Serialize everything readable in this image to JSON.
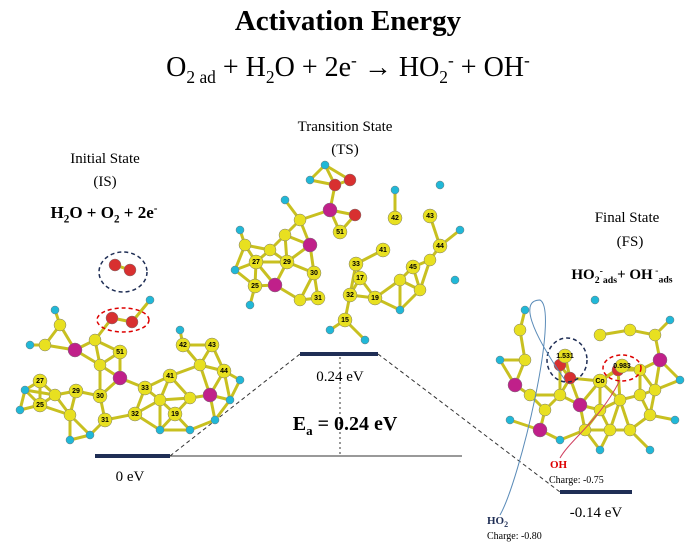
{
  "header": {
    "title": "Activation Energy",
    "equation": [
      {
        "text": "O",
        "style": "normal"
      },
      {
        "text": "2 ad",
        "style": "sub"
      },
      {
        "text": " + H",
        "style": "normal"
      },
      {
        "text": "2",
        "style": "sub"
      },
      {
        "text": "O + 2e",
        "style": "normal"
      },
      {
        "text": "-",
        "style": "sup"
      },
      {
        "text": " → HO",
        "style": "normal"
      },
      {
        "text": "2",
        "style": "sub"
      },
      {
        "text": "-",
        "style": "sup"
      },
      {
        "text": " + OH",
        "style": "normal"
      },
      {
        "text": "-",
        "style": "sup"
      }
    ]
  },
  "states": [
    {
      "name": "Initial State",
      "abbr": "(IS)",
      "energy": "0 eV",
      "formula": [
        {
          "text": "H",
          "style": "normal"
        },
        {
          "text": "2",
          "style": "sub"
        },
        {
          "text": "O + O",
          "style": "normal"
        },
        {
          "text": "2",
          "style": "sub"
        },
        {
          "text": " + 2e",
          "style": "normal"
        },
        {
          "text": "-",
          "style": "sup"
        }
      ],
      "atom_labels": [
        "51",
        "42",
        "43",
        "44",
        "41",
        "33",
        "32",
        "31",
        "30",
        "29",
        "27",
        "25",
        "19"
      ]
    },
    {
      "name": "Transition State",
      "abbr": "(TS)",
      "energy": "0.24 eV",
      "atom_labels": [
        "51",
        "42",
        "43",
        "44",
        "45",
        "41",
        "33",
        "32",
        "31",
        "30",
        "29",
        "27",
        "25",
        "17",
        "19",
        "15"
      ]
    },
    {
      "name": "Final State",
      "abbr": "(FS)",
      "energy": "-0.14 eV",
      "formula": [
        {
          "text": "HO",
          "style": "normal"
        },
        {
          "text": "2",
          "style": "sub"
        },
        {
          "text": "-",
          "style": "sup"
        },
        {
          "text": "ads",
          "style": "sub"
        },
        {
          "text": "+ OH",
          "style": "normal"
        },
        {
          "text": " -",
          "style": "sup"
        },
        {
          "text": "ads",
          "style": "sub"
        }
      ],
      "atom_labels": [
        "1.531",
        "0.983",
        "Co"
      ]
    }
  ],
  "activation": [
    {
      "text": "E",
      "style": "normal"
    },
    {
      "text": "a",
      "style": "sub"
    },
    {
      "text": " = 0.24 eV",
      "style": "normal"
    }
  ],
  "charges": [
    {
      "species": "OH",
      "charge": "Charge: -0.75"
    },
    {
      "species": "HO",
      "sub": "2",
      "charge": "Charge: -0.80"
    }
  ]
}
